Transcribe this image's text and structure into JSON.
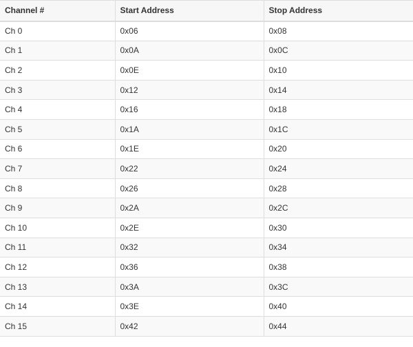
{
  "table": {
    "headers": [
      "Channel #",
      "Start Address",
      "Stop Address"
    ],
    "rows": [
      [
        "Ch 0",
        "0x06",
        "0x08"
      ],
      [
        "Ch 1",
        "0x0A",
        "0x0C"
      ],
      [
        "Ch 2",
        "0x0E",
        "0x10"
      ],
      [
        "Ch 3",
        "0x12",
        "0x14"
      ],
      [
        "Ch 4",
        "0x16",
        "0x18"
      ],
      [
        "Ch 5",
        "0x1A",
        "0x1C"
      ],
      [
        "Ch 6",
        "0x1E",
        "0x20"
      ],
      [
        "Ch 7",
        "0x22",
        "0x24"
      ],
      [
        "Ch 8",
        "0x26",
        "0x28"
      ],
      [
        "Ch 9",
        "0x2A",
        "0x2C"
      ],
      [
        "Ch 10",
        "0x2E",
        "0x30"
      ],
      [
        "Ch 11",
        "0x32",
        "0x34"
      ],
      [
        "Ch 12",
        "0x36",
        "0x38"
      ],
      [
        "Ch 13",
        "0x3A",
        "0x3C"
      ],
      [
        "Ch 14",
        "0x3E",
        "0x40"
      ],
      [
        "Ch 15",
        "0x42",
        "0x44"
      ]
    ]
  }
}
